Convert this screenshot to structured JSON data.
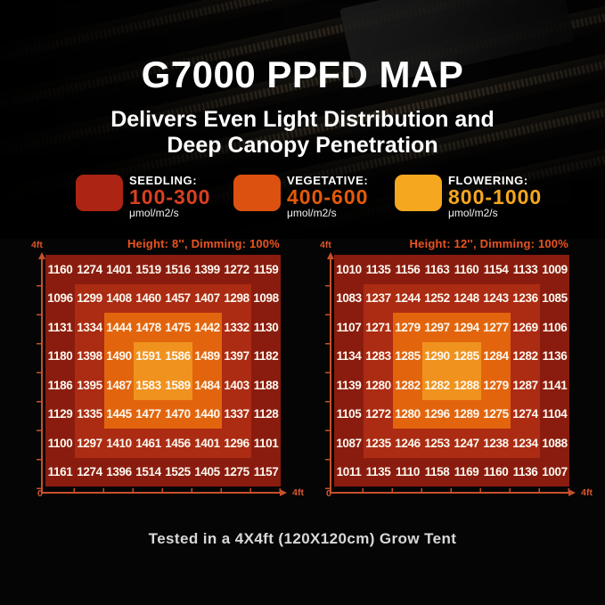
{
  "page": {
    "title": "G7000 PPFD MAP",
    "subtitle_line1": "Delivers Even Light Distribution and",
    "subtitle_line2": "Deep Canopy Penetration",
    "caption": "Tested in a 4X4ft (120X120cm) Grow Tent"
  },
  "legend": {
    "items": [
      {
        "name": "SEEDLING:",
        "range": "100-300",
        "unit": "μmol/m2/s",
        "swatch_color": "#AC2414",
        "range_color": "#D84020"
      },
      {
        "name": "VEGETATIVE:",
        "range": "400-600",
        "unit": "μmol/m2/s",
        "swatch_color": "#DD5110",
        "range_color": "#E45A07"
      },
      {
        "name": "FLOWERING:",
        "range": "800-1000",
        "unit": "μmol/m2/s",
        "swatch_color": "#F5A71F",
        "range_color": "#F6A71E"
      }
    ]
  },
  "chart_data": [
    {
      "type": "heatmap",
      "title": "Height: 8'', Dimming: 100%",
      "unit": "μmol/m2/s",
      "x_axis": {
        "origin_label": "0",
        "end_label": "4ft"
      },
      "y_axis": {
        "end_label": "4ft"
      },
      "rows": [
        [
          1160,
          1274,
          1401,
          1519,
          1516,
          1399,
          1272,
          1159
        ],
        [
          1096,
          1299,
          1408,
          1460,
          1457,
          1407,
          1298,
          1098
        ],
        [
          1131,
          1334,
          1444,
          1478,
          1475,
          1442,
          1332,
          1130
        ],
        [
          1180,
          1398,
          1490,
          1591,
          1586,
          1489,
          1397,
          1182
        ],
        [
          1186,
          1395,
          1487,
          1583,
          1589,
          1484,
          1403,
          1188
        ],
        [
          1129,
          1335,
          1445,
          1477,
          1470,
          1440,
          1337,
          1128
        ],
        [
          1100,
          1297,
          1410,
          1461,
          1456,
          1401,
          1296,
          1101
        ],
        [
          1161,
          1274,
          1396,
          1514,
          1525,
          1405,
          1275,
          1157
        ]
      ],
      "zone_layers": [
        {
          "inset_cells": 0,
          "color": "#8A1C0F"
        },
        {
          "inset_cells": 1,
          "color": "#AC2B13"
        },
        {
          "inset_cells": 2,
          "color": "#E2650D"
        },
        {
          "inset_cells": 3,
          "color": "#F0921E"
        }
      ]
    },
    {
      "type": "heatmap",
      "title": "Height: 12'', Dimming: 100%",
      "unit": "μmol/m2/s",
      "x_axis": {
        "origin_label": "0",
        "end_label": "4ft"
      },
      "y_axis": {
        "end_label": "4ft"
      },
      "rows": [
        [
          1010,
          1135,
          1156,
          1163,
          1160,
          1154,
          1133,
          1009
        ],
        [
          1083,
          1237,
          1244,
          1252,
          1248,
          1243,
          1236,
          1085
        ],
        [
          1107,
          1271,
          1279,
          1297,
          1294,
          1277,
          1269,
          1106
        ],
        [
          1134,
          1283,
          1285,
          1290,
          1285,
          1284,
          1282,
          1136
        ],
        [
          1139,
          1280,
          1282,
          1282,
          1288,
          1279,
          1287,
          1141
        ],
        [
          1105,
          1272,
          1280,
          1296,
          1289,
          1275,
          1274,
          1104
        ],
        [
          1087,
          1235,
          1246,
          1253,
          1247,
          1238,
          1234,
          1088
        ],
        [
          1011,
          1135,
          1110,
          1158,
          1169,
          1160,
          1136,
          1007
        ]
      ],
      "zone_layers": [
        {
          "inset_cells": 0,
          "color": "#8A1C0F"
        },
        {
          "inset_cells": 1,
          "color": "#AC2B13"
        },
        {
          "inset_cells": 2,
          "color": "#E2650D"
        },
        {
          "inset_cells": 3,
          "color": "#F0921E"
        }
      ]
    }
  ],
  "colors": {
    "header_text": "#EA5320",
    "axis": "#C7502B",
    "value_text": "#FDF8EF"
  }
}
